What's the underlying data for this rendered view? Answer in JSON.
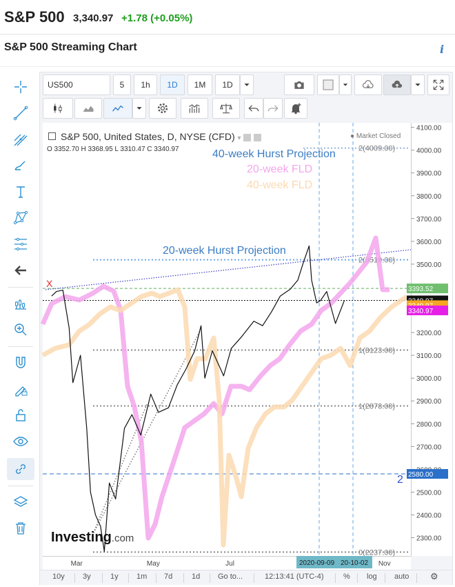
{
  "header": {
    "name": "S&P 500",
    "price": "3,340.97",
    "change": "+1.78 (+0.05%)",
    "change_color": "#1d9d1d"
  },
  "section": {
    "title": "S&P 500 Streaming Chart",
    "info_icon": "i"
  },
  "left_tools": [
    "crosshair-icon",
    "trend-line-icon",
    "pitchfork-icon",
    "brush-icon",
    "text-icon",
    "pattern-icon",
    "fib-icon",
    "back-arrow-icon",
    "measure-icon",
    "zoom-in-icon",
    "magnet-icon",
    "lock-drawing-icon",
    "unlock-icon",
    "eye-icon",
    "link-icon",
    "layers-icon",
    "trash-icon"
  ],
  "toolbar": {
    "symbol": "US500",
    "intervals": [
      "5",
      "1h",
      "1D",
      "1M",
      "1D"
    ],
    "selected_interval": "1D"
  },
  "legend": {
    "title": "S&P 500, United States, D, NYSE (CFD)",
    "ohlc": "O 3352.70  H 3368.95  L 3310.47  C 3340.97",
    "market_status": "Market Closed"
  },
  "annotations": {
    "hurst40": "40-week Hurst Projection",
    "fld20": "20-week FLD",
    "fld40": "40-week FLD",
    "hurst20": "20-week Hurst Projection",
    "level_4009": "2(4009.00)",
    "level_3519": "2(3519.00)",
    "level_3123": "1(3123.00)",
    "level_2878": "1(2878.00)",
    "level_2237": "0(2237.00)",
    "marker_x": "X",
    "marker_2": "2",
    "colors": {
      "price": "#111111",
      "fld20": "#f3a6ec",
      "fld40": "#fcd9b0",
      "hurst40_text": "#3b7dc4",
      "hurst20_text": "#3b7dc4"
    }
  },
  "chart_data": {
    "type": "line",
    "y_ticks": [
      "4100.00",
      "4000.00",
      "3900.00",
      "3800.00",
      "3700.00",
      "3600.00",
      "3500.00",
      "3400.00",
      "3300.00",
      "3200.00",
      "3100.00",
      "3000.00",
      "2900.00",
      "2800.00",
      "2700.00",
      "2600.00",
      "2500.00",
      "2400.00",
      "2300.00"
    ],
    "ylim": [
      2220,
      4120
    ],
    "x_ticks": [
      "Mar",
      "May",
      "Jul",
      "Nov"
    ],
    "price_badges": [
      {
        "label": "3393.52",
        "color": "#6fbf6f",
        "value": 3393.52
      },
      {
        "label": "3340.97",
        "color": "#111111",
        "value": 3340.97
      },
      {
        "label": "3340.97",
        "color": "#f5a623",
        "value": 3320
      },
      {
        "label": "3340.97",
        "color": "#e620e6",
        "value": 3297
      },
      {
        "label": "2580.00",
        "color": "#2a6fc9",
        "value": 2580
      }
    ],
    "crosshair_date_label": "2020-09-09",
    "second_date_label": "20-10-02",
    "series": [
      {
        "name": "S&P 500",
        "x": [
          "2020-02-10",
          "2020-02-14",
          "2020-02-19",
          "2020-02-24",
          "2020-02-27",
          "2020-03-04",
          "2020-03-09",
          "2020-03-12",
          "2020-03-16",
          "2020-03-20",
          "2020-03-23",
          "2020-03-27",
          "2020-04-01",
          "2020-04-08",
          "2020-04-14",
          "2020-04-21",
          "2020-04-29",
          "2020-05-05",
          "2020-05-13",
          "2020-05-20",
          "2020-05-27",
          "2020-06-03",
          "2020-06-08",
          "2020-06-11",
          "2020-06-17",
          "2020-06-26",
          "2020-07-02",
          "2020-07-10",
          "2020-07-20",
          "2020-07-27",
          "2020-08-03",
          "2020-08-10",
          "2020-08-18",
          "2020-08-24",
          "2020-08-28",
          "2020-09-02",
          "2020-09-04",
          "2020-09-08",
          "2020-09-11",
          "2020-09-16",
          "2020-09-23",
          "2020-09-30"
        ],
        "values": [
          3360,
          3380,
          3386,
          3220,
          2980,
          3100,
          2780,
          2500,
          2400,
          2350,
          2240,
          2540,
          2470,
          2780,
          2840,
          2750,
          2930,
          2850,
          2870,
          2970,
          3040,
          3120,
          3230,
          3000,
          3120,
          3010,
          3130,
          3180,
          3250,
          3230,
          3290,
          3360,
          3390,
          3430,
          3500,
          3580,
          3430,
          3330,
          3340,
          3380,
          3240,
          3340
        ]
      }
    ]
  },
  "bottom_bar": {
    "ranges": [
      "10y",
      "3y",
      "1y",
      "1m",
      "7d",
      "1d"
    ],
    "goto": "Go to...",
    "time": "12:13:41 (UTC-4)",
    "percent": "%",
    "log": "log",
    "auto": "auto"
  },
  "watermark": {
    "brand": "Investing",
    "suffix": ".com"
  }
}
